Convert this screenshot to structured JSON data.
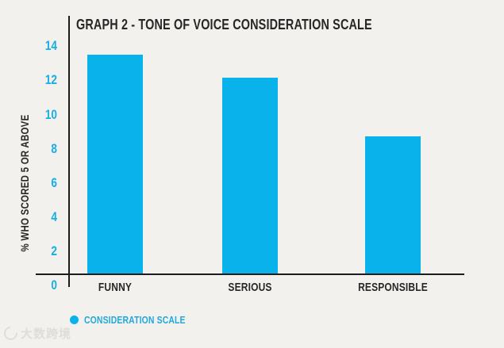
{
  "colors": {
    "background": "#F2F1EE",
    "bar": "#0AB2EB",
    "tick_text": "#17AEE5",
    "legend_text": "#22A9DC",
    "axis": "#1D1B1B",
    "dark_text": "#2A2626"
  },
  "chart_data": {
    "type": "bar",
    "title": "GRAPH 2 - TONE OF VOICE CONSIDERATION SCALE",
    "ylabel": "% WHO SCORED 5 OR ABOVE",
    "xlabel": "",
    "categories": [
      "FUNNY",
      "SERIOUS",
      "RESPONSIBLE"
    ],
    "values": [
      13.4,
      12,
      8.4
    ],
    "yticks": [
      0,
      2,
      4,
      6,
      8,
      10,
      12,
      14
    ],
    "ylim": [
      0,
      14
    ],
    "grid": false,
    "bar_color": "#0AB2EB",
    "legend": {
      "label": "CONSIDERATION SCALE",
      "marker": "circle",
      "position": "bottom-left"
    }
  },
  "watermark": {
    "text": "大数跨境",
    "icon": "logo-icon"
  }
}
